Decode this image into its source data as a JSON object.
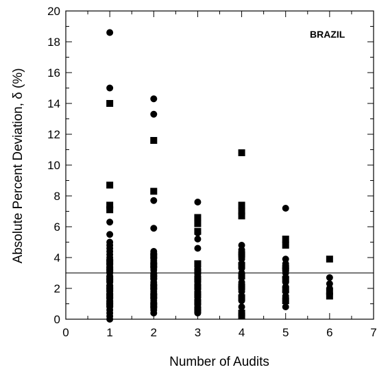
{
  "chart_data": {
    "type": "scatter",
    "xlabel": "Number of Audits",
    "ylabel": "Absolute Percent Deviation, δ (%)",
    "xlim": [
      0,
      7
    ],
    "ylim": [
      0,
      20
    ],
    "x_ticks": [
      0,
      1,
      2,
      3,
      4,
      5,
      6,
      7
    ],
    "y_ticks": [
      0,
      2,
      4,
      6,
      8,
      10,
      12,
      14,
      16,
      18,
      20
    ],
    "annotation": "BRAZIL",
    "reference_line": {
      "y": 3.0
    },
    "grid": false,
    "series": [
      {
        "marker": "circle",
        "points": [
          {
            "x": 1,
            "y": 18.6
          },
          {
            "x": 1,
            "y": 15.0
          },
          {
            "x": 1,
            "y": 6.3
          },
          {
            "x": 1,
            "y": 5.5
          },
          {
            "x": 1,
            "y": 5.0
          },
          {
            "x": 1,
            "y": 4.8
          },
          {
            "x": 1,
            "y": 4.6
          },
          {
            "x": 1,
            "y": 4.4
          },
          {
            "x": 1,
            "y": 4.2
          },
          {
            "x": 1,
            "y": 4.0
          },
          {
            "x": 1,
            "y": 3.8
          },
          {
            "x": 1,
            "y": 3.6
          },
          {
            "x": 1,
            "y": 3.4
          },
          {
            "x": 1,
            "y": 3.2
          },
          {
            "x": 1,
            "y": 3.0
          },
          {
            "x": 1,
            "y": 2.8
          },
          {
            "x": 1,
            "y": 2.6
          },
          {
            "x": 1,
            "y": 2.4
          },
          {
            "x": 1,
            "y": 2.2
          },
          {
            "x": 1,
            "y": 2.0
          },
          {
            "x": 1,
            "y": 1.8
          },
          {
            "x": 1,
            "y": 1.6
          },
          {
            "x": 1,
            "y": 1.4
          },
          {
            "x": 1,
            "y": 1.2
          },
          {
            "x": 1,
            "y": 1.0
          },
          {
            "x": 1,
            "y": 0.8
          },
          {
            "x": 1,
            "y": 0.6
          },
          {
            "x": 1,
            "y": 0.4
          },
          {
            "x": 1,
            "y": 0.2
          },
          {
            "x": 1,
            "y": 0.0
          },
          {
            "x": 2,
            "y": 14.3
          },
          {
            "x": 2,
            "y": 13.3
          },
          {
            "x": 2,
            "y": 7.7
          },
          {
            "x": 2,
            "y": 5.9
          },
          {
            "x": 2,
            "y": 4.4
          },
          {
            "x": 2,
            "y": 4.2
          },
          {
            "x": 2,
            "y": 4.0
          },
          {
            "x": 2,
            "y": 3.8
          },
          {
            "x": 2,
            "y": 3.6
          },
          {
            "x": 2,
            "y": 3.4
          },
          {
            "x": 2,
            "y": 3.2
          },
          {
            "x": 2,
            "y": 3.0
          },
          {
            "x": 2,
            "y": 2.8
          },
          {
            "x": 2,
            "y": 2.6
          },
          {
            "x": 2,
            "y": 2.4
          },
          {
            "x": 2,
            "y": 2.2
          },
          {
            "x": 2,
            "y": 2.0
          },
          {
            "x": 2,
            "y": 1.8
          },
          {
            "x": 2,
            "y": 1.6
          },
          {
            "x": 2,
            "y": 1.4
          },
          {
            "x": 2,
            "y": 1.2
          },
          {
            "x": 2,
            "y": 1.0
          },
          {
            "x": 2,
            "y": 0.8
          },
          {
            "x": 2,
            "y": 0.6
          },
          {
            "x": 2,
            "y": 0.4
          },
          {
            "x": 3,
            "y": 7.6
          },
          {
            "x": 3,
            "y": 5.6
          },
          {
            "x": 3,
            "y": 5.2
          },
          {
            "x": 3,
            "y": 4.6
          },
          {
            "x": 3,
            "y": 3.4
          },
          {
            "x": 3,
            "y": 3.2
          },
          {
            "x": 3,
            "y": 3.0
          },
          {
            "x": 3,
            "y": 2.8
          },
          {
            "x": 3,
            "y": 2.6
          },
          {
            "x": 3,
            "y": 2.4
          },
          {
            "x": 3,
            "y": 2.2
          },
          {
            "x": 3,
            "y": 2.0
          },
          {
            "x": 3,
            "y": 1.8
          },
          {
            "x": 3,
            "y": 1.6
          },
          {
            "x": 3,
            "y": 1.4
          },
          {
            "x": 3,
            "y": 1.2
          },
          {
            "x": 3,
            "y": 1.0
          },
          {
            "x": 3,
            "y": 0.8
          },
          {
            "x": 3,
            "y": 0.6
          },
          {
            "x": 3,
            "y": 0.4
          },
          {
            "x": 4,
            "y": 4.8
          },
          {
            "x": 4,
            "y": 4.5
          },
          {
            "x": 4,
            "y": 4.2
          },
          {
            "x": 4,
            "y": 3.9
          },
          {
            "x": 4,
            "y": 3.6
          },
          {
            "x": 4,
            "y": 3.3
          },
          {
            "x": 4,
            "y": 3.0
          },
          {
            "x": 4,
            "y": 2.7
          },
          {
            "x": 4,
            "y": 2.4
          },
          {
            "x": 4,
            "y": 2.1
          },
          {
            "x": 4,
            "y": 1.8
          },
          {
            "x": 4,
            "y": 1.5
          },
          {
            "x": 4,
            "y": 1.2
          },
          {
            "x": 4,
            "y": 0.8
          },
          {
            "x": 5,
            "y": 7.2
          },
          {
            "x": 5,
            "y": 3.9
          },
          {
            "x": 5,
            "y": 3.6
          },
          {
            "x": 5,
            "y": 3.3
          },
          {
            "x": 5,
            "y": 3.0
          },
          {
            "x": 5,
            "y": 2.7
          },
          {
            "x": 5,
            "y": 2.4
          },
          {
            "x": 5,
            "y": 2.1
          },
          {
            "x": 5,
            "y": 1.8
          },
          {
            "x": 5,
            "y": 1.5
          },
          {
            "x": 5,
            "y": 0.8
          },
          {
            "x": 6,
            "y": 2.7
          },
          {
            "x": 6,
            "y": 2.3
          },
          {
            "x": 6,
            "y": 2.0
          }
        ]
      },
      {
        "marker": "square",
        "points": [
          {
            "x": 1,
            "y": 14.0
          },
          {
            "x": 1,
            "y": 8.7
          },
          {
            "x": 1,
            "y": 7.4
          },
          {
            "x": 1,
            "y": 7.1
          },
          {
            "x": 1,
            "y": 3.7
          },
          {
            "x": 1,
            "y": 3.2
          },
          {
            "x": 1,
            "y": 2.6
          },
          {
            "x": 1,
            "y": 2.0
          },
          {
            "x": 1,
            "y": 1.5
          },
          {
            "x": 1,
            "y": 1.0
          },
          {
            "x": 2,
            "y": 11.6
          },
          {
            "x": 2,
            "y": 8.3
          },
          {
            "x": 2,
            "y": 4.1
          },
          {
            "x": 2,
            "y": 3.5
          },
          {
            "x": 2,
            "y": 2.8
          },
          {
            "x": 2,
            "y": 2.1
          },
          {
            "x": 2,
            "y": 1.5
          },
          {
            "x": 2,
            "y": 0.9
          },
          {
            "x": 3,
            "y": 6.6
          },
          {
            "x": 3,
            "y": 6.2
          },
          {
            "x": 3,
            "y": 5.7
          },
          {
            "x": 3,
            "y": 3.6
          },
          {
            "x": 3,
            "y": 3.1
          },
          {
            "x": 3,
            "y": 2.6
          },
          {
            "x": 3,
            "y": 2.1
          },
          {
            "x": 3,
            "y": 1.6
          },
          {
            "x": 3,
            "y": 1.1
          },
          {
            "x": 3,
            "y": 0.6
          },
          {
            "x": 4,
            "y": 10.8
          },
          {
            "x": 4,
            "y": 7.4
          },
          {
            "x": 4,
            "y": 7.0
          },
          {
            "x": 4,
            "y": 6.7
          },
          {
            "x": 4,
            "y": 4.2
          },
          {
            "x": 4,
            "y": 3.5
          },
          {
            "x": 4,
            "y": 2.8
          },
          {
            "x": 4,
            "y": 2.1
          },
          {
            "x": 4,
            "y": 1.4
          },
          {
            "x": 4,
            "y": 0.4
          },
          {
            "x": 4,
            "y": 0.2
          },
          {
            "x": 5,
            "y": 5.2
          },
          {
            "x": 5,
            "y": 4.8
          },
          {
            "x": 5,
            "y": 3.3
          },
          {
            "x": 5,
            "y": 2.6
          },
          {
            "x": 5,
            "y": 1.9
          },
          {
            "x": 5,
            "y": 1.2
          },
          {
            "x": 6,
            "y": 3.9
          },
          {
            "x": 6,
            "y": 1.8
          },
          {
            "x": 6,
            "y": 1.5
          }
        ]
      }
    ]
  }
}
